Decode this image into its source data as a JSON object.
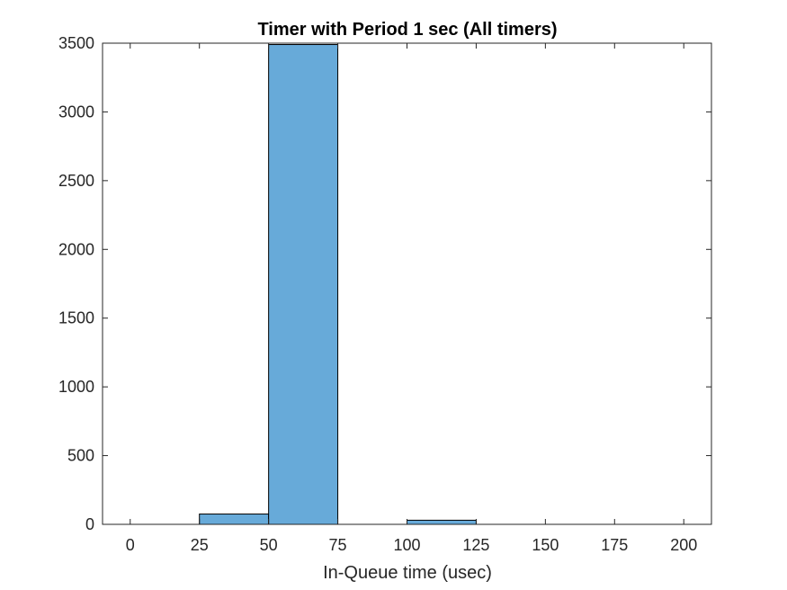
{
  "chart_data": {
    "type": "bar",
    "title": "Timer with Period 1 sec (All timers)",
    "xlabel": "In-Queue time (usec)",
    "ylabel": "",
    "xlim": [
      -10,
      210
    ],
    "ylim": [
      0,
      3500
    ],
    "xticks": [
      0,
      25,
      50,
      75,
      100,
      125,
      150,
      175,
      200
    ],
    "yticks": [
      0,
      500,
      1000,
      1500,
      2000,
      2500,
      3000,
      3500
    ],
    "bin_width": 25,
    "bins": [
      {
        "start": 25,
        "end": 50,
        "value": 75
      },
      {
        "start": 50,
        "end": 75,
        "value": 3490
      },
      {
        "start": 100,
        "end": 125,
        "value": 30
      }
    ],
    "bar_color": "#67AAD9",
    "edge_color": "#000000",
    "grid": false,
    "legend": "none"
  }
}
